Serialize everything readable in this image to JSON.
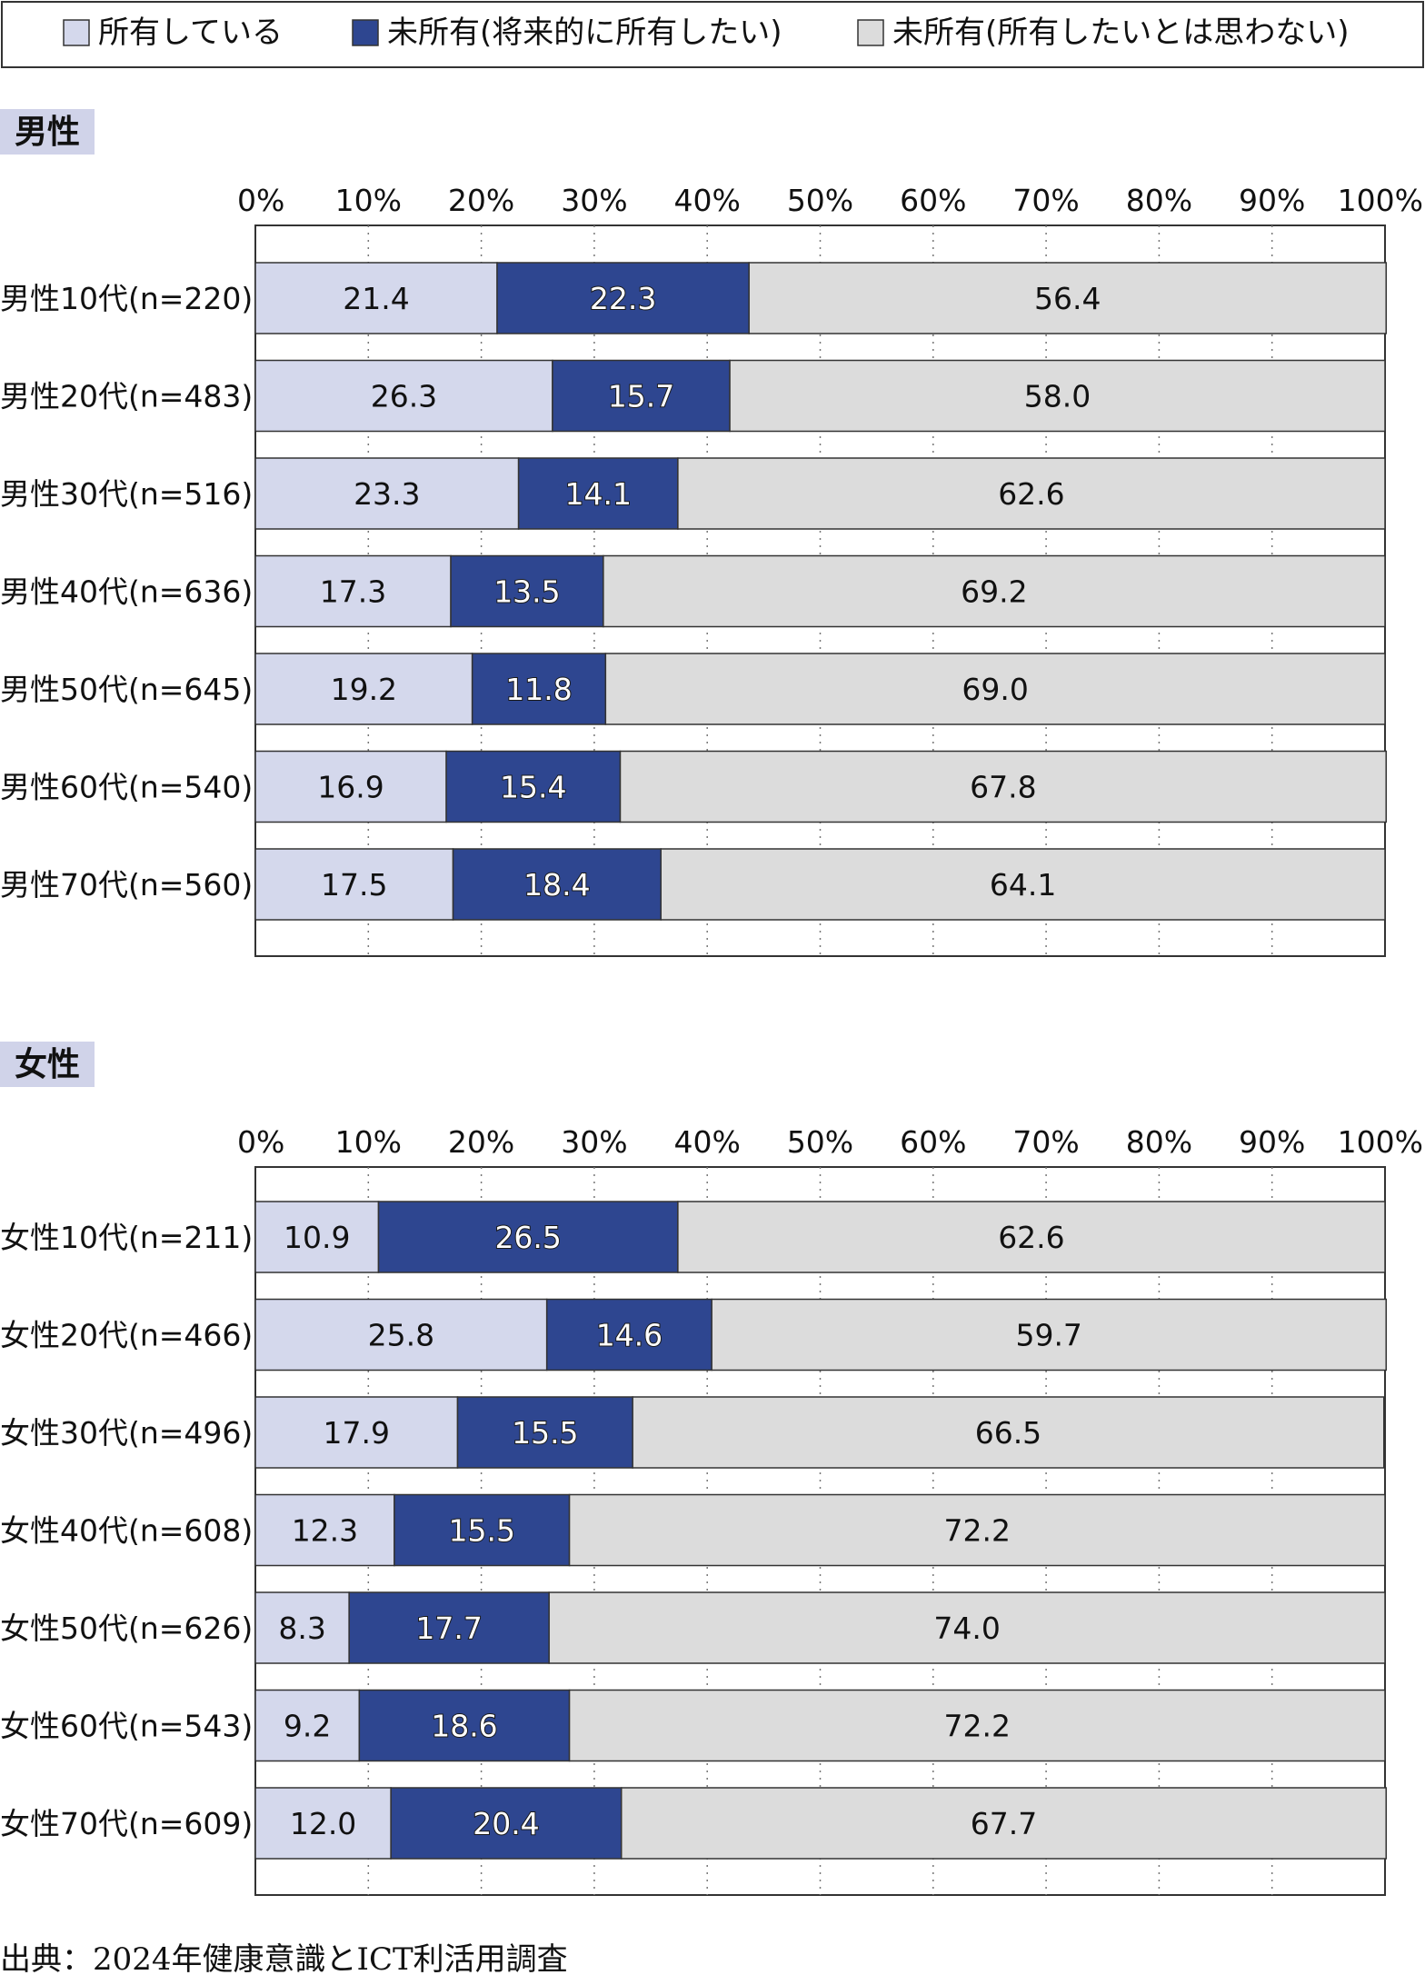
{
  "colors": {
    "owned": "#d4d8ec",
    "want": "#2e4690",
    "not_want": "#dcdcdc",
    "section_bg": "#d0d3e9",
    "border": "#333333"
  },
  "legend": [
    {
      "key": "owned",
      "label": "所有している"
    },
    {
      "key": "want",
      "label": "未所有(将来的に所有したい)"
    },
    {
      "key": "not_want",
      "label": "未所有(所有したいとは思わない)"
    }
  ],
  "source": "出典：2024年健康意識とICT利活用調査",
  "chart_data": [
    {
      "type": "bar",
      "orientation": "horizontal",
      "stacked": true,
      "title": "男性",
      "xlim": [
        0,
        100
      ],
      "ticks": [
        "0%",
        "10%",
        "20%",
        "30%",
        "40%",
        "50%",
        "60%",
        "70%",
        "80%",
        "90%",
        "100%"
      ],
      "categories": [
        "男性10代(n=220)",
        "男性20代(n=483)",
        "男性30代(n=516)",
        "男性40代(n=636)",
        "男性50代(n=645)",
        "男性60代(n=540)",
        "男性70代(n=560)"
      ],
      "series": [
        {
          "name": "所有している",
          "color_key": "owned",
          "values": [
            21.4,
            26.3,
            23.3,
            17.3,
            19.2,
            16.9,
            17.5
          ]
        },
        {
          "name": "未所有(将来的に所有したい)",
          "color_key": "want",
          "values": [
            22.3,
            15.7,
            14.1,
            13.5,
            11.8,
            15.4,
            18.4
          ]
        },
        {
          "name": "未所有(所有したいとは思わない)",
          "color_key": "not_want",
          "values": [
            56.4,
            58.0,
            62.6,
            69.2,
            69.0,
            67.8,
            64.1
          ]
        }
      ],
      "grid": "vertical dotted"
    },
    {
      "type": "bar",
      "orientation": "horizontal",
      "stacked": true,
      "title": "女性",
      "xlim": [
        0,
        100
      ],
      "ticks": [
        "0%",
        "10%",
        "20%",
        "30%",
        "40%",
        "50%",
        "60%",
        "70%",
        "80%",
        "90%",
        "100%"
      ],
      "categories": [
        "女性10代(n=211)",
        "女性20代(n=466)",
        "女性30代(n=496)",
        "女性40代(n=608)",
        "女性50代(n=626)",
        "女性60代(n=543)",
        "女性70代(n=609)"
      ],
      "series": [
        {
          "name": "所有している",
          "color_key": "owned",
          "values": [
            10.9,
            25.8,
            17.9,
            12.3,
            8.3,
            9.2,
            12.0
          ]
        },
        {
          "name": "未所有(将来的に所有したい)",
          "color_key": "want",
          "values": [
            26.5,
            14.6,
            15.5,
            15.5,
            17.7,
            18.6,
            20.4
          ]
        },
        {
          "name": "未所有(所有したいとは思わない)",
          "color_key": "not_want",
          "values": [
            62.6,
            59.7,
            66.5,
            72.2,
            74.0,
            72.2,
            67.7
          ]
        }
      ],
      "grid": "vertical dotted"
    }
  ]
}
